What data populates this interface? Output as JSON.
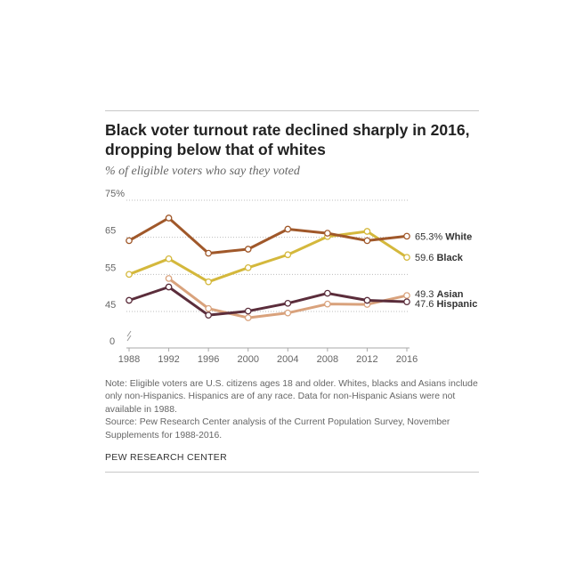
{
  "title": "Black voter turnout rate declined sharply in 2016, dropping below that of whites",
  "subtitle": "% of eligible voters who say they voted",
  "notes": {
    "note": "Note: Eligible voters are U.S. citizens ages 18 and older. Whites, blacks and Asians include only non-Hispanics. Hispanics are of any race. Data for non-Hispanic Asians were not available in 1988.",
    "source": "Source: Pew Research Center analysis of the Current Population Survey, November Supplements for 1988-2016."
  },
  "footer": "PEW RESEARCH CENTER",
  "chart_data": {
    "type": "line",
    "x": [
      1988,
      1992,
      1996,
      2000,
      2004,
      2008,
      2012,
      2016
    ],
    "y_ticks": [
      "75%",
      "65",
      "55",
      "45",
      "0"
    ],
    "ylim": [
      0,
      75
    ],
    "axis_break": true,
    "grid": "dotted horizontal",
    "legend": "inline labels at line ends",
    "series": [
      {
        "name": "White",
        "color": "#a0582a",
        "values": [
          64.1,
          70.2,
          60.7,
          61.8,
          67.2,
          66.1,
          64.1,
          65.3
        ],
        "end_value": "65.3%"
      },
      {
        "name": "Black",
        "color": "#d4b83c",
        "values": [
          55.0,
          59.2,
          53.0,
          56.8,
          60.3,
          65.2,
          66.6,
          59.6
        ],
        "end_value": "59.6"
      },
      {
        "name": "Asian",
        "color": "#d9a27c",
        "values": [
          null,
          53.9,
          45.8,
          43.3,
          44.6,
          47.0,
          46.9,
          49.3
        ],
        "end_value": "49.3"
      },
      {
        "name": "Hispanic",
        "color": "#5b2d3b",
        "values": [
          48.0,
          51.6,
          44.0,
          45.1,
          47.2,
          49.9,
          48.0,
          47.6
        ],
        "end_value": "47.6"
      }
    ]
  }
}
